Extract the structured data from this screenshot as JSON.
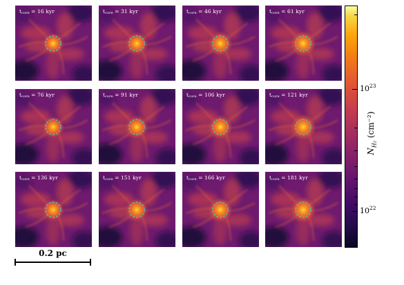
{
  "panels": [
    {
      "label_base": "t",
      "label_sub": "core",
      "label_eq": " = 16 kyr"
    },
    {
      "label_base": "t",
      "label_sub": "core",
      "label_eq": " = 31 kyr"
    },
    {
      "label_base": "t",
      "label_sub": "core",
      "label_eq": " = 46 kyr"
    },
    {
      "label_base": "t",
      "label_sub": "core",
      "label_eq": " = 61 kyr"
    },
    {
      "label_base": "t",
      "label_sub": "core",
      "label_eq": " = 76 kyr"
    },
    {
      "label_base": "t",
      "label_sub": "core",
      "label_eq": " = 91 kyr"
    },
    {
      "label_base": "t",
      "label_sub": "core",
      "label_eq": " = 106 kyr"
    },
    {
      "label_base": "t",
      "label_sub": "core",
      "label_eq": " = 121 kyr"
    },
    {
      "label_base": "t",
      "label_sub": "core",
      "label_eq": " = 136 kyr"
    },
    {
      "label_base": "t",
      "label_sub": "core",
      "label_eq": " = 151 kyr"
    },
    {
      "label_base": "t",
      "label_sub": "core",
      "label_eq": " = 166 kyr"
    },
    {
      "label_base": "t",
      "label_sub": "core",
      "label_eq": " = 181 kyr"
    }
  ],
  "colorbar": {
    "title": "N_H2 (cm^-2)",
    "title_display": "N",
    "title_sub": "H₂",
    "title_unit": " (cm⁻²)",
    "ticks": [
      {
        "base": "10",
        "exp": "23"
      },
      {
        "base": "10",
        "exp": "22"
      }
    ],
    "colormap": "inferno"
  },
  "scalebar": {
    "label": "0.2 pc"
  },
  "colors": {
    "circle": "#5fb3b3",
    "background": "#ffffff"
  }
}
